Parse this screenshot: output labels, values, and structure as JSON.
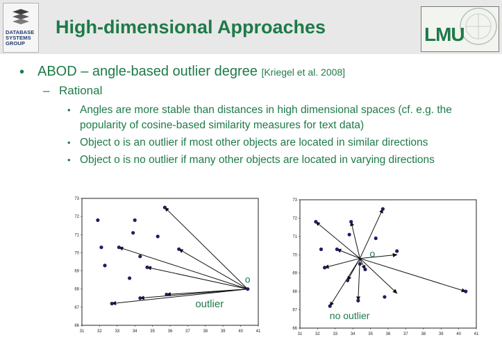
{
  "header": {
    "logo_text": "DATABASE SYSTEMS GROUP",
    "title": "High-dimensional Approaches",
    "lmu_logo": "LMU"
  },
  "bullets": {
    "main": "ABOD – angle-based outlier degree",
    "citation": "[Kriegel et al. 2008]",
    "sub_heading": "Rational",
    "items": [
      "Angles are more stable than distances in high dimensional spaces (cf. e.g. the popularity of cosine-based similarity measures for text data)",
      "Object o is an outlier if most other objects are located in similar directions",
      "Object o is no outlier if many other objects are located in varying directions"
    ]
  },
  "chart_data": [
    {
      "type": "scatter",
      "xlim": [
        31,
        41
      ],
      "ylim": [
        66,
        73
      ],
      "xticks": [
        "31",
        "32",
        "33",
        "34",
        "35",
        "36",
        "37",
        "38",
        "39",
        "40",
        "41"
      ],
      "yticks": [
        "66",
        "67",
        "68",
        "69",
        "70",
        "71",
        "72",
        "73"
      ],
      "points": [
        [
          35.7,
          72.5
        ],
        [
          31.9,
          71.8
        ],
        [
          34.0,
          71.8
        ],
        [
          33.9,
          71.1
        ],
        [
          35.3,
          70.9
        ],
        [
          32.1,
          70.3
        ],
        [
          33.1,
          70.3
        ],
        [
          36.5,
          70.2
        ],
        [
          34.3,
          69.8
        ],
        [
          32.3,
          69.3
        ],
        [
          34.7,
          69.2
        ],
        [
          33.7,
          68.6
        ],
        [
          35.8,
          67.7
        ],
        [
          34.3,
          67.5
        ],
        [
          32.7,
          67.2
        ],
        [
          40.4,
          68.0
        ]
      ],
      "arrows_from": [
        40.4,
        68.0
      ],
      "arrows_to": [
        [
          35.7,
          72.5
        ],
        [
          33.1,
          70.3
        ],
        [
          36.5,
          70.2
        ],
        [
          34.7,
          69.2
        ],
        [
          35.8,
          67.7
        ],
        [
          34.3,
          67.5
        ],
        [
          32.7,
          67.2
        ]
      ],
      "point_label": "o",
      "annotation": "outlier"
    },
    {
      "type": "scatter",
      "xlim": [
        31,
        41
      ],
      "ylim": [
        66,
        73
      ],
      "xticks": [
        "31",
        "32",
        "33",
        "34",
        "35",
        "36",
        "37",
        "38",
        "39",
        "40",
        "41"
      ],
      "yticks": [
        "66",
        "67",
        "68",
        "69",
        "70",
        "71",
        "72",
        "73"
      ],
      "points": [
        [
          35.7,
          72.5
        ],
        [
          31.9,
          71.8
        ],
        [
          33.9,
          71.8
        ],
        [
          33.8,
          71.1
        ],
        [
          35.3,
          70.9
        ],
        [
          32.2,
          70.3
        ],
        [
          33.1,
          70.3
        ],
        [
          36.5,
          70.2
        ],
        [
          32.4,
          69.3
        ],
        [
          34.4,
          69.5
        ],
        [
          34.7,
          69.2
        ],
        [
          33.7,
          68.6
        ],
        [
          35.8,
          67.7
        ],
        [
          34.3,
          67.5
        ],
        [
          32.7,
          67.2
        ],
        [
          40.4,
          68.0
        ]
      ],
      "arrows_from": [
        34.4,
        69.8
      ],
      "arrows_to": [
        [
          35.7,
          72.5
        ],
        [
          31.9,
          71.8
        ],
        [
          33.9,
          71.8
        ],
        [
          33.1,
          70.3
        ],
        [
          36.5,
          70.0
        ],
        [
          32.4,
          69.3
        ],
        [
          34.7,
          69.2
        ],
        [
          33.7,
          68.6
        ],
        [
          36.5,
          67.9
        ],
        [
          34.3,
          67.5
        ],
        [
          32.7,
          67.2
        ],
        [
          40.4,
          68.0
        ]
      ],
      "point_label": "o",
      "annotation": "no outlier"
    }
  ]
}
